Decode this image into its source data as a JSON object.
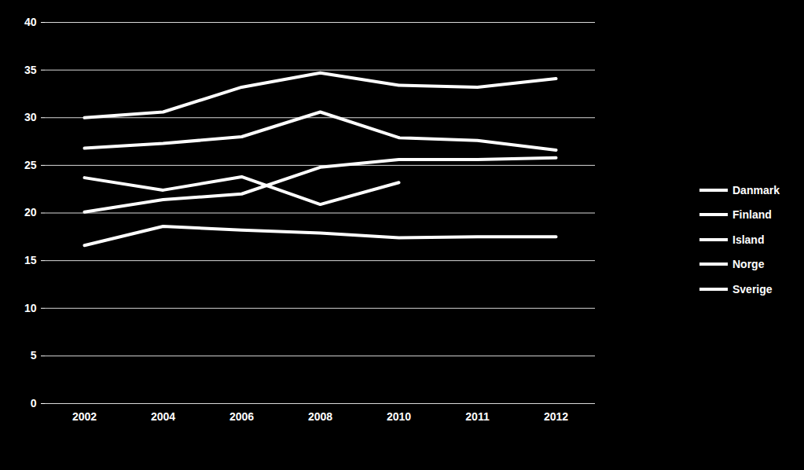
{
  "chart_data": {
    "type": "line",
    "categories": [
      "2002",
      "2004",
      "2006",
      "2008",
      "2010",
      "2011",
      "2012"
    ],
    "series": [
      {
        "name": "Danmark",
        "color": "#ffffff",
        "values": [
          30.0,
          30.6,
          33.2,
          34.7,
          33.4,
          33.2,
          34.1
        ]
      },
      {
        "name": "Finland",
        "color": "#ffffff",
        "values": [
          26.8,
          27.3,
          28.0,
          30.6,
          27.9,
          27.6,
          26.6
        ]
      },
      {
        "name": "Island",
        "color": "#ffffff",
        "values": [
          23.7,
          22.4,
          23.8,
          20.9,
          23.2,
          null,
          null
        ]
      },
      {
        "name": "Norge",
        "color": "#ffffff",
        "values": [
          20.1,
          21.4,
          22.0,
          24.8,
          25.6,
          25.6,
          25.8
        ]
      },
      {
        "name": "Sverige",
        "color": "#ffffff",
        "values": [
          16.6,
          18.6,
          18.2,
          17.9,
          17.4,
          17.5,
          17.5
        ]
      }
    ],
    "ylim": [
      0,
      40
    ],
    "yticks": [
      0,
      5,
      10,
      15,
      20,
      25,
      30,
      35,
      40
    ],
    "grid": true,
    "legend": "right"
  }
}
